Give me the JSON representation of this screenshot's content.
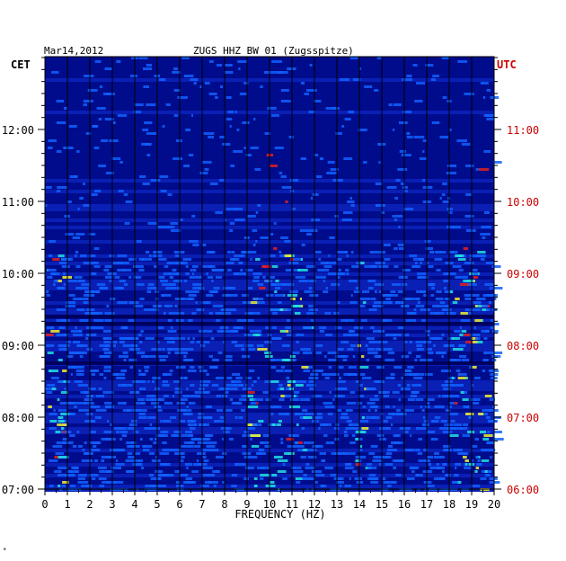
{
  "header": {
    "date": "Mar14,2012",
    "station": "ZUGS HHZ BW 01 (Zugsspitze)"
  },
  "chart_data": {
    "type": "heatmap",
    "title": "ZUGS HHZ BW 01 (Zugsspitze)",
    "xlabel": "FREQUENCY (HZ)",
    "xlim": [
      0,
      20
    ],
    "x_ticks": [
      "0",
      "1",
      "2",
      "3",
      "4",
      "5",
      "6",
      "7",
      "8",
      "9",
      "10",
      "11",
      "12",
      "13",
      "14",
      "15",
      "16",
      "17",
      "18",
      "19",
      "20"
    ],
    "left_axis": {
      "label": "CET",
      "ticks": [
        "07:00",
        "08:00",
        "09:00",
        "10:00",
        "11:00",
        "12:00"
      ]
    },
    "right_axis": {
      "label": "UTC",
      "ticks": [
        "06:00",
        "07:00",
        "08:00",
        "09:00",
        "10:00",
        "11:00"
      ]
    },
    "grid": true,
    "colors": {
      "background": "#000c8c",
      "quiet": "#0a1fb4",
      "gridline": "#000000",
      "right_axis_text": "#cc0000",
      "active_blue": "#1060ff",
      "active_cyan": "#20e0e0",
      "active_yellow": "#f0f030",
      "active_red": "#e02020"
    }
  },
  "footer_mark": "*"
}
